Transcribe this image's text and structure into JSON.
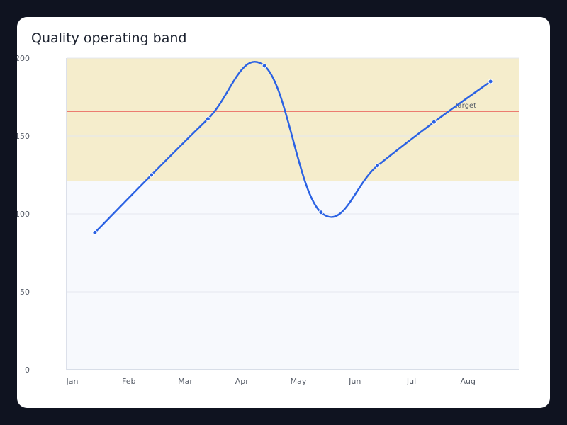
{
  "chart_data": {
    "type": "line",
    "title": "Quality operating band",
    "categories": [
      "Jan",
      "Feb",
      "Mar",
      "Apr",
      "May",
      "Jun",
      "Jul",
      "Aug"
    ],
    "series": [
      {
        "values": [
          88,
          125,
          161,
          195,
          101,
          131,
          159,
          185
        ],
        "color": "#2b62e3"
      }
    ],
    "ylim": [
      0,
      200
    ],
    "yticks": [
      0,
      50,
      100,
      150,
      200
    ],
    "band": {
      "from": 121,
      "to": 200,
      "color": "#f5edcc"
    },
    "target": {
      "value": 166,
      "label": "Target",
      "color": "#e83a3a"
    },
    "grid": true,
    "legend": "none",
    "xlabel": "",
    "ylabel": ""
  }
}
